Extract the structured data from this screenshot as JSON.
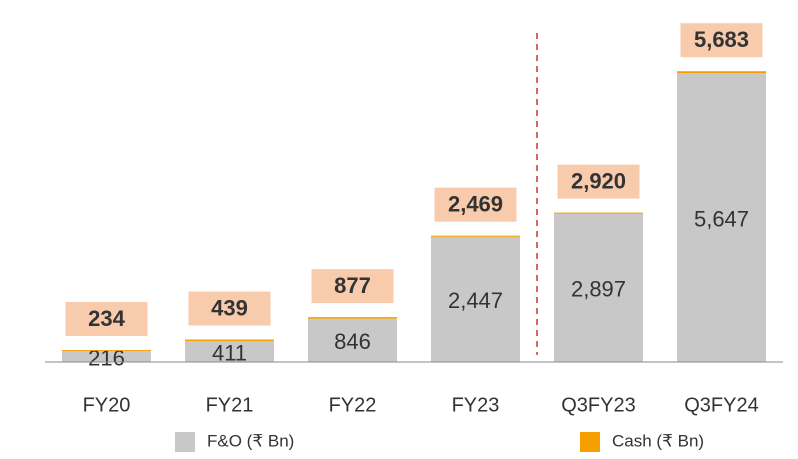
{
  "chart_data": {
    "type": "stacked_bar",
    "categories": [
      "FY20",
      "FY21",
      "FY22",
      "FY23",
      "Q3FY23",
      "Q3FY24"
    ],
    "series": [
      {
        "name": "F&O (₹ Bn)",
        "color": "#c8c8c8",
        "values": [
          216,
          411,
          846,
          2447,
          2897,
          5647
        ],
        "value_labels": [
          "216",
          "411",
          "846",
          "2,447",
          "2,897",
          "5,647"
        ]
      },
      {
        "name": "Cash (₹ Bn)",
        "color": "#f5a000",
        "values": [
          18,
          28,
          31,
          22,
          23,
          36
        ]
      }
    ],
    "total_labels": [
      "234",
      "439",
      "877",
      "2,469",
      "2,920",
      "5,683"
    ],
    "ylim": [
      0,
      6000
    ]
  }
}
